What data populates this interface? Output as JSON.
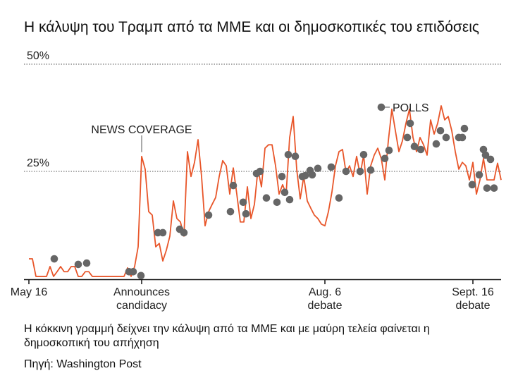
{
  "chart_data": {
    "type": "line",
    "title": "Η κάλυψη του Τραμπ από τα ΜΜΕ και οι δημοσκοπικές του επιδόσεις",
    "note": "Η κόκκινη γραμμή δείχνει την κάλυψη από τα ΜΜΕ και με μαύρη τελεία φαίνεται η δημοσκοπική του απήχηση",
    "source": "Πηγή: Washington Post",
    "xlim": [
      0,
      134
    ],
    "xticks": [
      {
        "value": 0,
        "label": "May 16"
      },
      {
        "value": 32,
        "label": "Announces candidacy"
      },
      {
        "value": 84,
        "label": "Aug. 6 debate"
      },
      {
        "value": 126,
        "label": "Sept. 16 debate"
      }
    ],
    "ylim": [
      0,
      50
    ],
    "yticks": [
      {
        "value": 25,
        "label": "25%"
      },
      {
        "value": 50,
        "label": "50%"
      }
    ],
    "grid": true,
    "series": [
      {
        "name": "NEWS COVERAGE",
        "type": "line",
        "color": "#e8562a",
        "x": [
          0,
          1,
          2,
          3,
          4,
          5,
          6,
          7,
          8,
          9,
          10,
          11,
          12,
          13,
          14,
          15,
          16,
          17,
          18,
          19,
          20,
          21,
          22,
          23,
          24,
          25,
          26,
          27,
          28,
          29,
          30,
          31,
          32,
          33,
          34,
          35,
          36,
          37,
          38,
          39,
          40,
          41,
          42,
          43,
          44,
          45,
          46,
          47,
          48,
          49,
          50,
          51,
          52,
          53,
          54,
          55,
          56,
          57,
          58,
          59,
          60,
          61,
          62,
          63,
          64,
          65,
          66,
          67,
          68,
          69,
          70,
          71,
          72,
          73,
          74,
          75,
          76,
          77,
          78,
          79,
          80,
          81,
          82,
          83,
          84,
          85,
          86,
          87,
          88,
          89,
          90,
          91,
          92,
          93,
          94,
          95,
          96,
          97,
          98,
          99,
          100,
          101,
          102,
          103,
          104,
          105,
          106,
          107,
          108,
          109,
          110,
          111,
          112,
          113,
          114,
          115,
          116,
          117,
          118,
          119,
          120,
          121,
          122,
          123,
          124,
          125,
          126,
          127,
          128,
          129,
          130,
          131,
          132,
          133,
          134
        ],
        "values": [
          4.6,
          4.6,
          0.5,
          0.5,
          0.5,
          0.5,
          2.8,
          0.5,
          1.6,
          2.8,
          1.6,
          1.6,
          2.8,
          2.8,
          0.5,
          0.5,
          1.6,
          1.6,
          0.5,
          0.5,
          0.5,
          0.5,
          0.5,
          0.5,
          0.5,
          0.5,
          0.5,
          0.5,
          2.5,
          0.5,
          2.8,
          7.4,
          28.5,
          25.5,
          15.6,
          14.8,
          7.4,
          8.2,
          4.1,
          6.6,
          9.9,
          18.1,
          14.0,
          13.2,
          9.9,
          29.6,
          23.8,
          27.1,
          32.4,
          23.8,
          12.3,
          15.6,
          17.3,
          18.9,
          23.8,
          27.5,
          26.3,
          19.7,
          25.8,
          19.7,
          13.2,
          13.2,
          21.4,
          14.0,
          17.3,
          25.5,
          21.4,
          30.4,
          31.2,
          31.2,
          26.3,
          19.7,
          21.9,
          19.7,
          32.9,
          37.8,
          25.5,
          18.6,
          23.8,
          18.1,
          16.4,
          14.8,
          14.0,
          12.7,
          12.3,
          15.6,
          20.2,
          26.3,
          29.6,
          30.1,
          24.7,
          26.3,
          23.8,
          28.5,
          24.2,
          28.8,
          19.7,
          26.3,
          28.8,
          30.4,
          28.0,
          23.0,
          32.1,
          39.5,
          34.5,
          29.6,
          32.1,
          36.2,
          39.5,
          32.9,
          29.6,
          32.9,
          31.2,
          28.8,
          37.0,
          33.7,
          36.2,
          40.3,
          37.0,
          37.8,
          34.5,
          29.6,
          25.5,
          27.1,
          26.3,
          23.0,
          27.1,
          19.7,
          23.0,
          28.0,
          23.0,
          23.0,
          23.0,
          26.9,
          23.0
        ]
      },
      {
        "name": "POLLS",
        "type": "scatter",
        "color": "#666666",
        "x": [
          7.2,
          14,
          16.4,
          28.4,
          29.6,
          31.8,
          36.6,
          38,
          42.8,
          44,
          51,
          57.2,
          58,
          60.8,
          61.6,
          64.6,
          65.6,
          67.4,
          70.4,
          71.8,
          72.6,
          73.6,
          74,
          75.6,
          77.6,
          78.4,
          79.8,
          80.4,
          82,
          85.8,
          88,
          90,
          94,
          95,
          97,
          101,
          102.2,
          107.4,
          108.2,
          109.4,
          111.2,
          115.6,
          116.8,
          118.4,
          122,
          123,
          123.6,
          125.8,
          127.8,
          129,
          129.6,
          130,
          131,
          132
        ],
        "values": [
          4.6,
          3.3,
          3.6,
          1.6,
          1.6,
          0.7,
          10.7,
          10.7,
          11.5,
          10.7,
          14.8,
          15.6,
          21.7,
          17.8,
          15.1,
          24.5,
          25.0,
          18.8,
          17.8,
          23.8,
          20.1,
          28.9,
          18.4,
          28.5,
          23.8,
          24.0,
          25.2,
          24.2,
          25.7,
          26.0,
          18.8,
          25.0,
          25.0,
          28.9,
          25.3,
          28.0,
          29.9,
          32.9,
          36.2,
          30.8,
          30.1,
          31.4,
          34.5,
          32.9,
          32.9,
          32.9,
          35.0,
          21.9,
          24.2,
          30.1,
          28.8,
          21.1,
          27.8,
          21.1
        ]
      }
    ]
  }
}
